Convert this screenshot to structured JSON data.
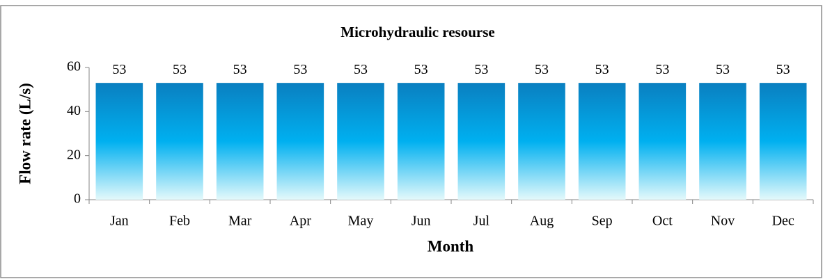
{
  "chart_data": {
    "type": "bar",
    "title": "Microhydraulic resourse",
    "x_label": "Month",
    "y_label": "Flow rate (L/s)",
    "categories": [
      "Jan",
      "Feb",
      "Mar",
      "Apr",
      "May",
      "Jun",
      "Jul",
      "Aug",
      "Sep",
      "Oct",
      "Nov",
      "Dec"
    ],
    "values": [
      53,
      53,
      53,
      53,
      53,
      53,
      53,
      53,
      53,
      53,
      53,
      53
    ],
    "color": "#00b0f0",
    "ylim": [
      0,
      60
    ],
    "yticks": [
      0,
      20,
      40,
      60
    ],
    "grid": false
  }
}
